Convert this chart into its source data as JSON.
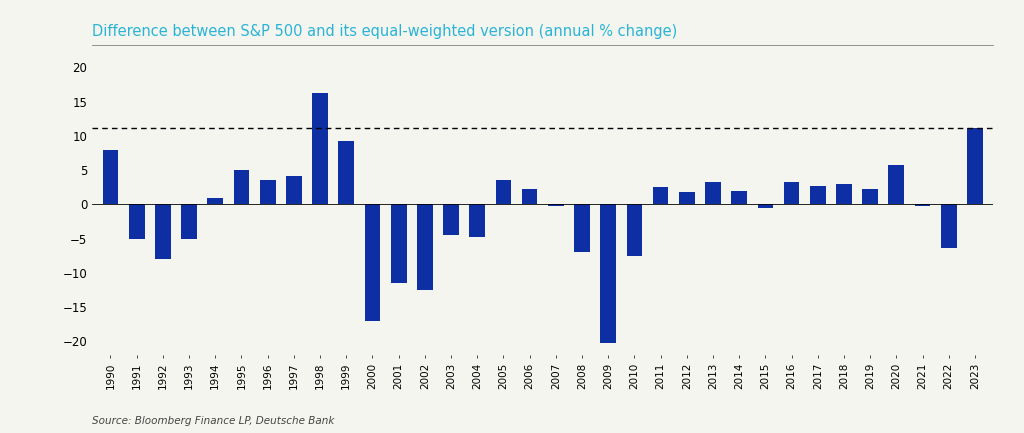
{
  "years": [
    "1990",
    "1991",
    "1992",
    "1993",
    "1994",
    "1995",
    "1996",
    "1997",
    "1998",
    "1999",
    "2000",
    "2001",
    "2002",
    "2003",
    "2004",
    "2005",
    "2006",
    "2007",
    "2008",
    "2009",
    "2010",
    "2011",
    "2012",
    "2013",
    "2014",
    "2015",
    "2016",
    "2017",
    "2018",
    "2019",
    "2020",
    "2021",
    "2022",
    "2023"
  ],
  "values": [
    8.0,
    -5.0,
    -8.0,
    -5.0,
    1.0,
    5.0,
    3.5,
    4.2,
    16.2,
    9.3,
    -17.0,
    -11.5,
    -12.5,
    -4.5,
    -4.8,
    3.5,
    2.2,
    -0.3,
    -7.0,
    -20.2,
    -7.5,
    2.5,
    1.8,
    3.3,
    2.0,
    -0.5,
    3.3,
    2.7,
    3.0,
    2.2,
    5.8,
    -0.3,
    -6.3,
    11.2
  ],
  "dashed_line_y": 11.2,
  "bar_color": "#0d2fa3",
  "title": "Difference between S&P 500 and its equal-weighted version (annual % change)",
  "title_color": "#29b4d6",
  "source_text": "Source: Bloomberg Finance LP, Deutsche Bank",
  "ylim": [
    -22,
    21
  ],
  "yticks": [
    -20,
    -15,
    -10,
    -5,
    0,
    5,
    10,
    15,
    20
  ],
  "background_color": "#f5f5f0",
  "bar_width": 0.6,
  "figsize": [
    10.24,
    4.33
  ],
  "dpi": 100
}
